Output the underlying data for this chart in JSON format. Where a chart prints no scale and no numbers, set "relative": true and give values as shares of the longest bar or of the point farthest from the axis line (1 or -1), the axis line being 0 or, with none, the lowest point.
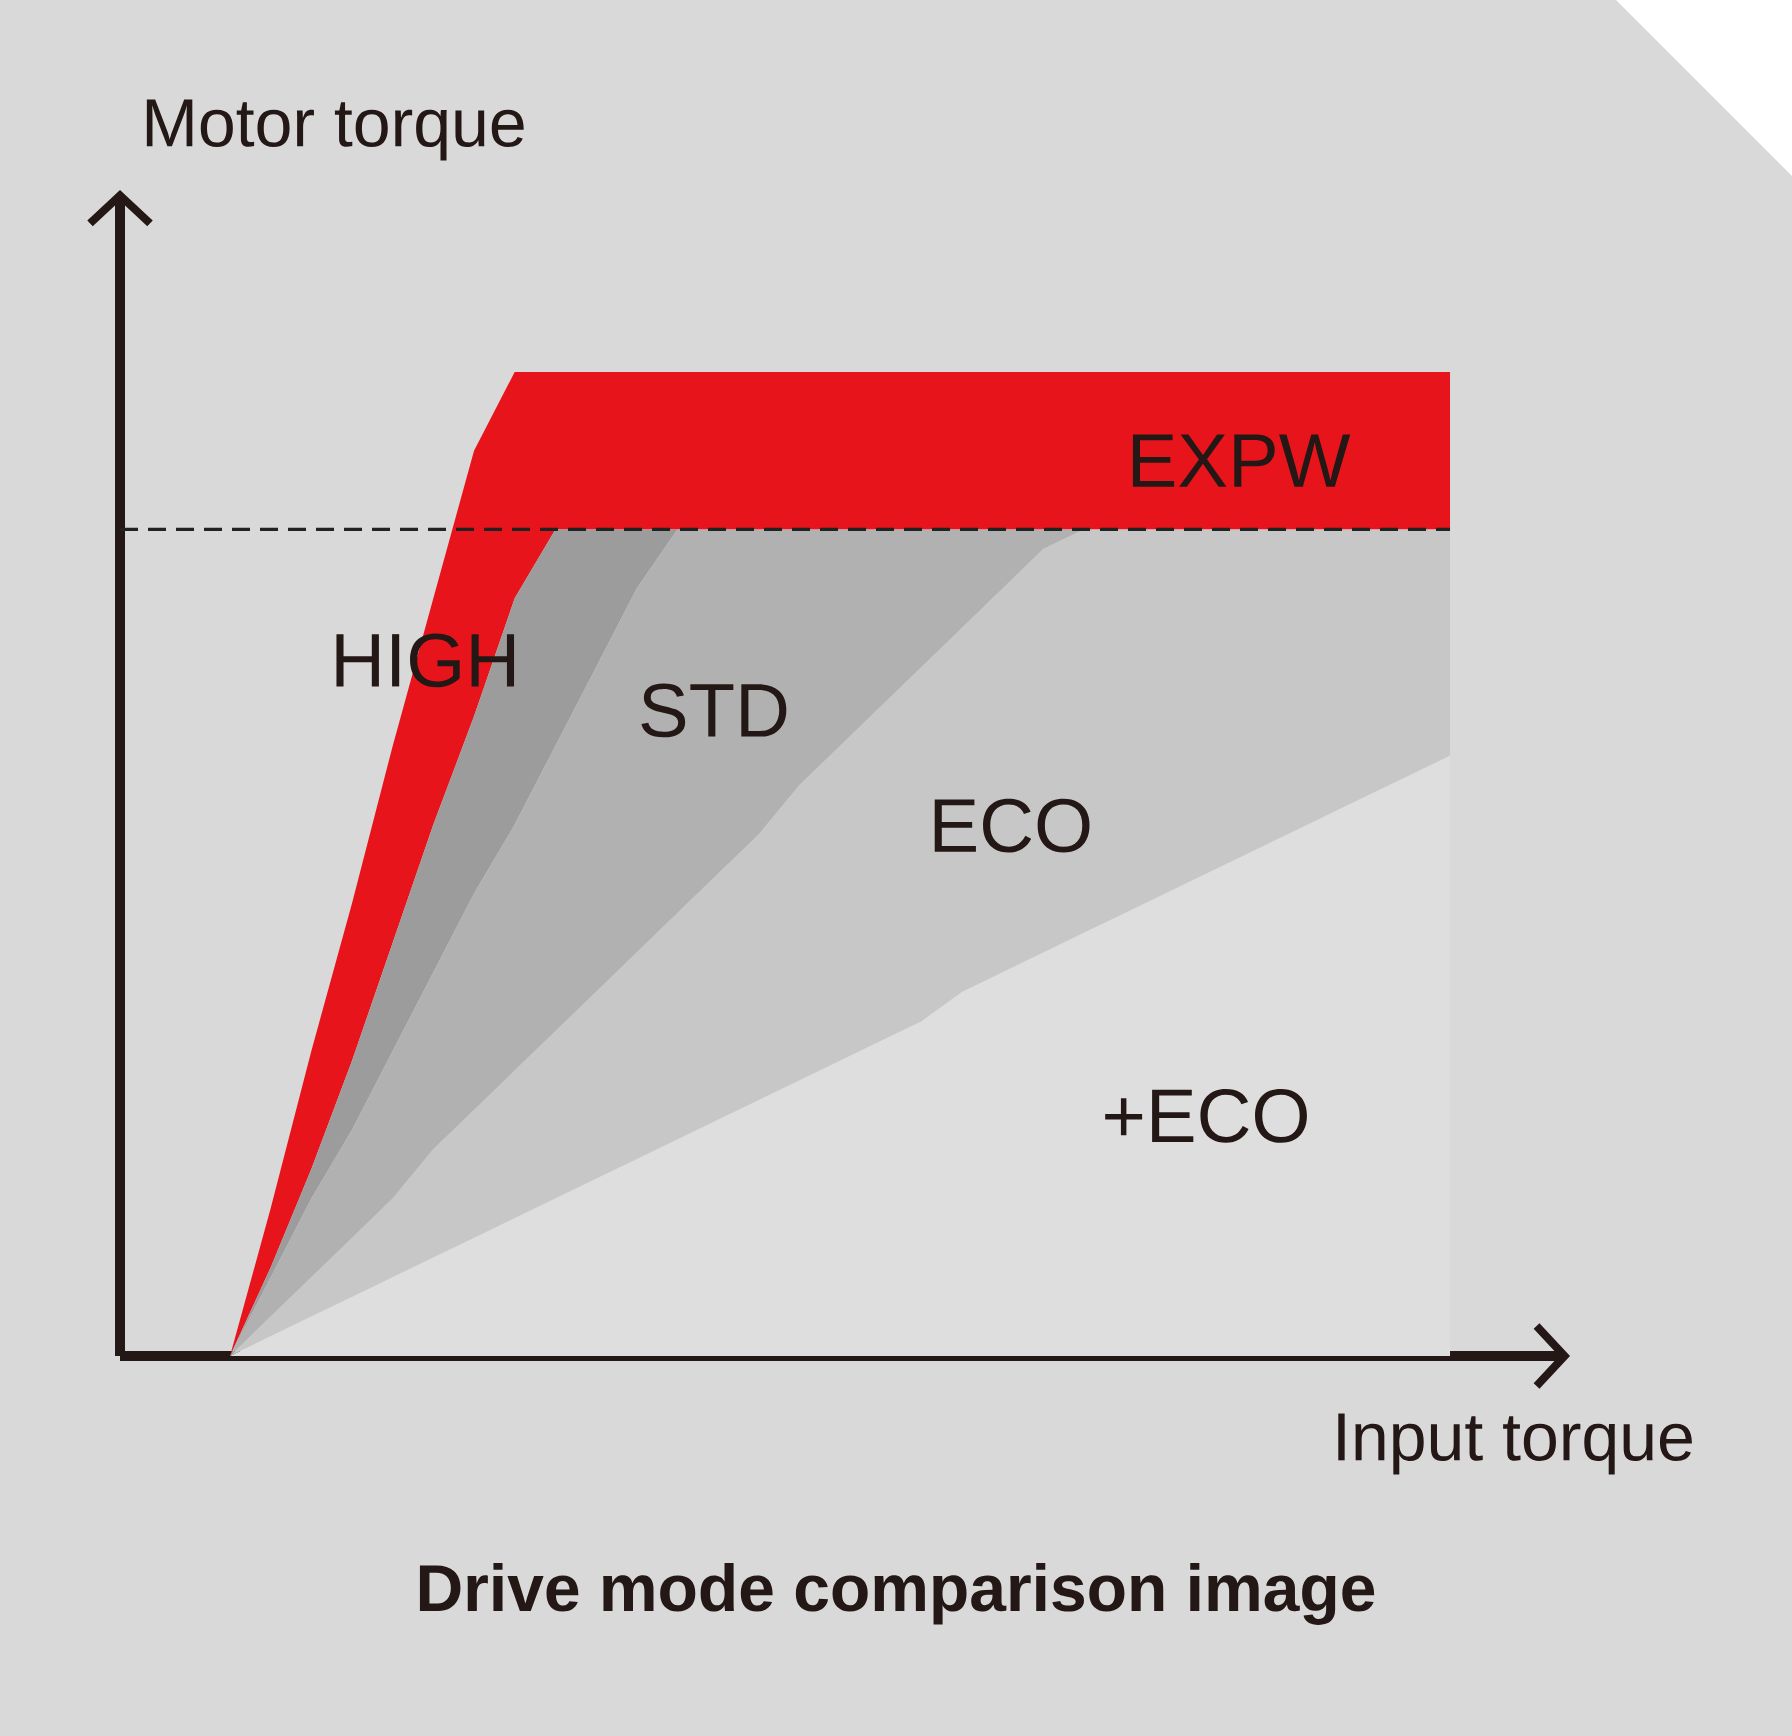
{
  "chart_data": {
    "type": "area",
    "title": "Drive mode comparison image",
    "xlabel": "Input torque",
    "ylabel": "Motor torque",
    "relative": true,
    "categories": [
      null,
      null,
      null,
      null,
      null,
      null,
      null,
      null,
      null,
      null,
      null,
      null,
      null,
      null,
      null,
      null,
      null,
      null,
      null,
      null,
      null,
      null,
      null,
      null,
      null,
      null,
      null,
      null,
      null,
      null,
      null
    ],
    "series": [
      {
        "name": "EXPW",
        "color": "#e8141c",
        "values": [
          0,
          0.15,
          0.31,
          0.46,
          0.62,
          0.77,
          0.92,
          1,
          1,
          1,
          1,
          1,
          1,
          1,
          1,
          1,
          1,
          1,
          1,
          1,
          1,
          1,
          1,
          1,
          1,
          1,
          1,
          1,
          1,
          1,
          1
        ]
      },
      {
        "name": "HIGH",
        "color": "#9c9c9c",
        "values": [
          0,
          0.09,
          0.19,
          0.3,
          0.42,
          0.54,
          0.65,
          0.77,
          0.84,
          0.84,
          0.84,
          0.84,
          null,
          null,
          null,
          null,
          null,
          null,
          null,
          null,
          null,
          null,
          null,
          null,
          null,
          null,
          null,
          null,
          null,
          null,
          null
        ]
      },
      {
        "name": "STD",
        "color": "#b1b1b1",
        "values": [
          0,
          0.08,
          0.16,
          0.23,
          0.31,
          0.39,
          0.47,
          0.54,
          0.62,
          0.7,
          0.78,
          0.84,
          0.84,
          0.84,
          0.84,
          0.84,
          0.84,
          0.84,
          0.84,
          0.84,
          0.84,
          0.84,
          null,
          null,
          null,
          null,
          null,
          null,
          null,
          null,
          null
        ]
      },
      {
        "name": "ECO",
        "color": "#c7c7c7",
        "values": [
          0,
          0.04,
          0.08,
          0.12,
          0.16,
          0.21,
          0.25,
          0.29,
          0.33,
          0.37,
          0.41,
          0.45,
          0.49,
          0.53,
          0.58,
          0.62,
          0.66,
          0.7,
          0.74,
          0.78,
          0.82,
          0.84,
          0.84,
          0.84,
          0.84,
          0.84,
          0.84,
          0.84,
          0.84,
          0.84,
          0.84
        ]
      },
      {
        "name": "+ECO",
        "color": "#dedede",
        "values": [
          0,
          0.02,
          0.04,
          0.06,
          0.08,
          0.1,
          0.12,
          0.14,
          0.16,
          0.18,
          0.2,
          0.22,
          0.24,
          0.26,
          0.28,
          0.3,
          0.32,
          0.34,
          0.37,
          0.39,
          0.41,
          0.43,
          0.45,
          0.47,
          0.49,
          0.51,
          0.53,
          0.55,
          0.57,
          0.59,
          0.61
        ]
      }
    ],
    "ref_lines": [
      {
        "axis": "y",
        "value": 0.84,
        "line_style": "dashed",
        "color": "#222222"
      }
    ]
  }
}
